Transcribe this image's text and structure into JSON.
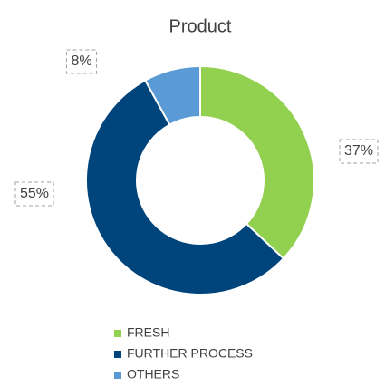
{
  "chart_data": {
    "type": "donut",
    "title": "Product",
    "categories": [
      "FRESH",
      "FURTHER PROCESS",
      "OTHERS"
    ],
    "values": [
      37,
      55,
      8
    ],
    "value_labels": [
      "37%",
      "55%",
      "8%"
    ],
    "colors": [
      "#92d050",
      "#00447c",
      "#5b9bd5"
    ],
    "legend": "bottom"
  }
}
